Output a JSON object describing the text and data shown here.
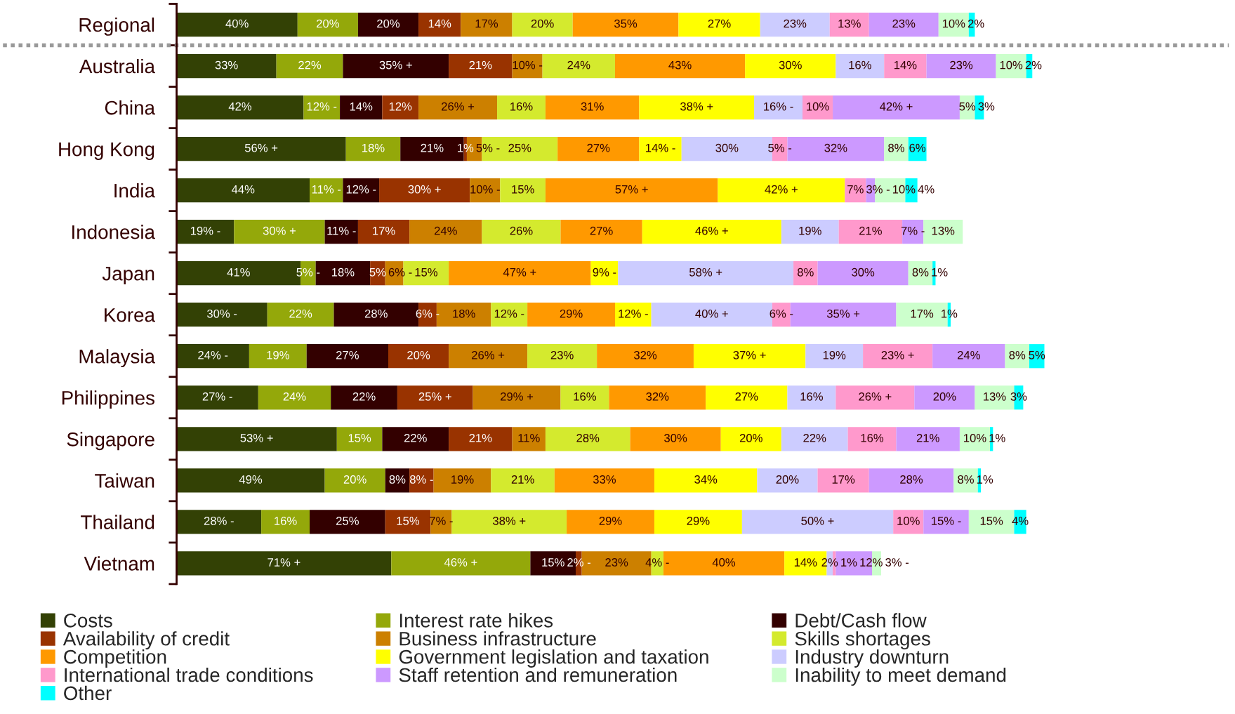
{
  "chart_data": {
    "type": "bar",
    "orientation": "horizontal",
    "stacked": true,
    "tick_labels": "y",
    "legend": "bottom",
    "xlim": [
      0,
      348
    ],
    "categories": [
      "Regional",
      "Australia",
      "China",
      "Hong Kong",
      "India",
      "Indonesia",
      "Japan",
      "Korea",
      "Malaysia",
      "Philippines",
      "Singapore",
      "Taiwan",
      "Thailand",
      "Vietnam"
    ],
    "series": [
      {
        "name": "Costs",
        "color": "#334105",
        "values": [
          40,
          33,
          42,
          56,
          44,
          19,
          41,
          30,
          24,
          27,
          53,
          49,
          28,
          71
        ],
        "value_labels": [
          "40%",
          "33%",
          "42%",
          "56% +",
          "44%",
          "19% -",
          "41%",
          "30% -",
          "24% -",
          "27% -",
          "53% +",
          "49%",
          "28% -",
          "71% +"
        ]
      },
      {
        "name": "Interest rate hikes",
        "color": "#94a80a",
        "values": [
          20,
          22,
          12,
          18,
          11,
          30,
          5,
          22,
          19,
          24,
          15,
          20,
          16,
          46
        ],
        "value_labels": [
          "20%",
          "22%",
          "12% -",
          "18%",
          "11% -",
          "30% +",
          "5% -",
          "22%",
          "19%",
          "24%",
          "15%",
          "20%",
          "16%",
          "46% +"
        ]
      },
      {
        "name": "Debt/Cash flow",
        "color": "#330000",
        "values": [
          20,
          35,
          14,
          21,
          12,
          11,
          18,
          28,
          27,
          22,
          22,
          8,
          25,
          15
        ],
        "value_labels": [
          "20%",
          "35% +",
          "14%",
          "21%",
          "12% -",
          "11% -",
          "18%",
          "28%",
          "27%",
          "22%",
          "22%",
          "8%",
          "25%",
          "15%"
        ]
      },
      {
        "name": "Availability of credit",
        "color": "#993300",
        "values": [
          14,
          21,
          12,
          1,
          30,
          17,
          5,
          6,
          20,
          25,
          21,
          8,
          15,
          2
        ],
        "value_labels": [
          "14%",
          "21%",
          "12%",
          "1%",
          "30% +",
          "17%",
          "5%",
          "6% -",
          "20%",
          "25% +",
          "21%",
          "8% -",
          "15%",
          "2% -"
        ]
      },
      {
        "name": "Business infrastructure",
        "color": "#cc8000",
        "values": [
          17,
          10,
          26,
          5,
          10,
          24,
          6,
          18,
          26,
          29,
          11,
          19,
          7,
          23
        ],
        "value_labels": [
          "17%",
          "10% -",
          "26% +",
          "5% -",
          "10% -",
          "24%",
          "6% -",
          "18%",
          "26% +",
          "29% +",
          "11%",
          "19%",
          "7% -",
          "23%"
        ]
      },
      {
        "name": "Skills shortages",
        "color": "#d4ea2e",
        "values": [
          20,
          24,
          16,
          25,
          15,
          26,
          15,
          12,
          23,
          16,
          28,
          21,
          38,
          4
        ],
        "value_labels": [
          "20%",
          "24%",
          "16%",
          "25%",
          "15%",
          "26%",
          "15%",
          "12% -",
          "23%",
          "16%",
          "28%",
          "21%",
          "38% +",
          "4% -"
        ]
      },
      {
        "name": "Competition",
        "color": "#ff9900",
        "values": [
          35,
          43,
          31,
          27,
          57,
          27,
          47,
          29,
          32,
          32,
          30,
          33,
          29,
          40
        ],
        "value_labels": [
          "35%",
          "43%",
          "31%",
          "27%",
          "57% +",
          "27%",
          "47% +",
          "29%",
          "32%",
          "32%",
          "30%",
          "33%",
          "29%",
          "40%"
        ]
      },
      {
        "name": "Government legislation and taxation",
        "color": "#ffff00",
        "values": [
          27,
          30,
          38,
          14,
          42,
          46,
          9,
          12,
          37,
          27,
          20,
          34,
          29,
          14
        ],
        "value_labels": [
          "27%",
          "30%",
          "38% +",
          "14% -",
          "42% +",
          "46% +",
          "9% -",
          "12% -",
          "37% +",
          "27%",
          "20%",
          "34%",
          "29%",
          "14%"
        ]
      },
      {
        "name": "Industry downturn",
        "color": "#ccccff",
        "values": [
          23,
          16,
          16,
          30,
          null,
          19,
          58,
          40,
          19,
          16,
          22,
          20,
          50,
          2
        ],
        "value_labels": [
          "23%",
          "16%",
          "16% -",
          "30%",
          null,
          "19%",
          "58% +",
          "40% +",
          "19%",
          "16%",
          "22%",
          "20%",
          "50% +",
          "2%"
        ]
      },
      {
        "name": "International trade conditions",
        "color": "#ff99cc",
        "values": [
          13,
          14,
          10,
          5,
          7,
          21,
          8,
          6,
          23,
          26,
          16,
          17,
          10,
          1
        ],
        "value_labels": [
          "13%",
          "14%",
          "10%",
          "5% -",
          "7%",
          "21%",
          "8%",
          "6% -",
          "23% +",
          "26% +",
          "16%",
          "17%",
          "10%",
          "1%"
        ]
      },
      {
        "name": "Staff retention and remuneration",
        "color": "#cc99ff",
        "values": [
          23,
          23,
          42,
          32,
          3,
          7,
          30,
          35,
          24,
          20,
          21,
          28,
          15,
          12
        ],
        "value_labels": [
          "23%",
          "23%",
          "42% +",
          "32%",
          "3% -",
          "7% -",
          "30%",
          "35% +",
          "24%",
          "20%",
          "21%",
          "28%",
          "15% -",
          "12%"
        ]
      },
      {
        "name": "Inability to meet demand",
        "color": "#ccffcc",
        "values": [
          10,
          10,
          5,
          8,
          10,
          13,
          8,
          17,
          8,
          13,
          10,
          8,
          15,
          3
        ],
        "value_labels": [
          "10%",
          "10%",
          "5%",
          "8%",
          "10%",
          "13%",
          "8%",
          "17%",
          "8%",
          "13%",
          "10%",
          "8%",
          "15%",
          "3% -"
        ]
      },
      {
        "name": "Other",
        "color": "#00ffff",
        "values": [
          2,
          2,
          3,
          6,
          4,
          null,
          1,
          1,
          5,
          3,
          1,
          1,
          4,
          null
        ],
        "value_labels": [
          "2%",
          "2%",
          "3%",
          "6%",
          "4%",
          null,
          "1%",
          "1%",
          "5%",
          "3%",
          "1%",
          "1%",
          "4%",
          null
        ]
      }
    ]
  }
}
